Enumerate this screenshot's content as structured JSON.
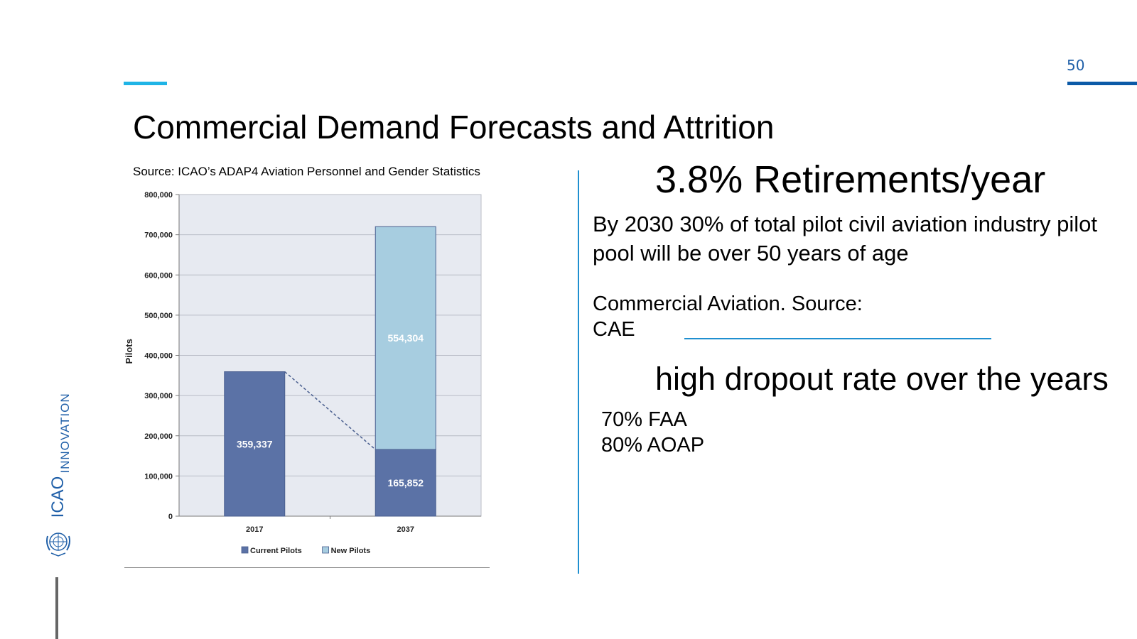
{
  "slide": {
    "page_number": "50",
    "title": "Commercial Demand Forecasts and Attrition",
    "source": "Source: ICAO’s ADAP4 Aviation Personnel and Gender Statistics"
  },
  "sidebar": {
    "label": "INNOVATION",
    "logo_text": "ICAO",
    "emblem_icon": "un-emblem-icon"
  },
  "right_panel": {
    "headline_1": "3.8% Retirements/year",
    "paragraph_1": "By 2030 30% of total pilot civil aviation industry pilot pool will be over 50 years of age",
    "paragraph_2_line_1": "Commercial Aviation. Source:",
    "paragraph_2_line_2": "CAE",
    "headline_2": "high dropout rate over the years",
    "stats": [
      "70% FAA",
      "80% AOAP"
    ]
  },
  "colors": {
    "accent_light_blue": "#1fb4e6",
    "accent_dark_blue": "#0b5aa7",
    "current_pilots": "#5b72a6",
    "new_pilots": "#a7cde0",
    "plot_bg": "#e7eaf1"
  },
  "chart_data": {
    "type": "bar",
    "stacked": true,
    "categories": [
      "2017",
      "2037"
    ],
    "series": [
      {
        "name": "Current Pilots",
        "values": [
          359337,
          165852
        ],
        "labels": [
          "359,337",
          "165,852"
        ]
      },
      {
        "name": "New Pilots",
        "values": [
          0,
          554304
        ],
        "labels": [
          "",
          "554,304"
        ]
      }
    ],
    "ylabel": "Pilots",
    "xlabel": "",
    "ylim": [
      0,
      800000
    ],
    "yticks": [
      0,
      100000,
      200000,
      300000,
      400000,
      500000,
      600000,
      700000,
      800000
    ],
    "ytick_labels": [
      "0",
      "100,000",
      "200,000",
      "300,000",
      "400,000",
      "500,000",
      "600,000",
      "700,000",
      "800,000"
    ],
    "grid": true,
    "legend": "bottom",
    "annotation": "dashed line connecting 2017 total to 2037 current pilots"
  }
}
